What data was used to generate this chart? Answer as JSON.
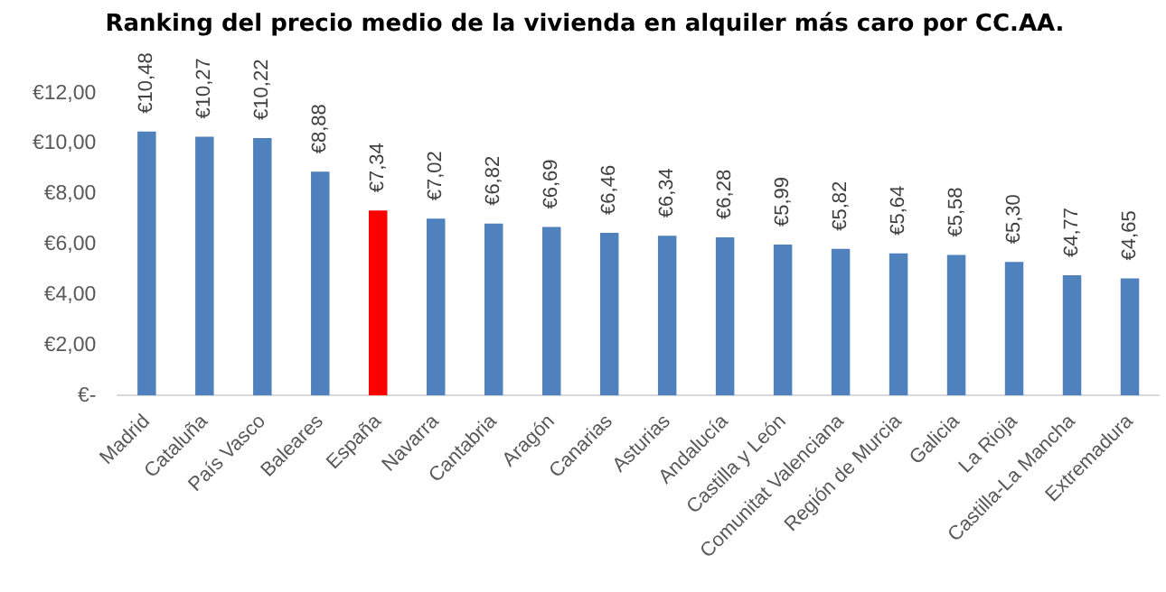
{
  "chart_data": {
    "type": "bar",
    "title": "Ranking del precio medio de la vivienda en alquiler más caro por CC.AA.",
    "categories": [
      "Madrid",
      "Cataluña",
      "País Vasco",
      "Baleares",
      "España",
      "Navarra",
      "Cantabria",
      "Aragón",
      "Canarias",
      "Asturias",
      "Andalucía",
      "Castilla y León",
      "Comunitat Valenciana",
      "Región de Murcia",
      "Galicia",
      "La Rioja",
      "Castilla-La Mancha",
      "Extremadura"
    ],
    "values": [
      10.48,
      10.27,
      10.22,
      8.88,
      7.34,
      7.02,
      6.82,
      6.69,
      6.46,
      6.34,
      6.28,
      5.99,
      5.82,
      5.64,
      5.58,
      5.3,
      4.77,
      4.65
    ],
    "colors": [
      "#4f81bd",
      "#4f81bd",
      "#4f81bd",
      "#4f81bd",
      "#ff0000",
      "#4f81bd",
      "#4f81bd",
      "#4f81bd",
      "#4f81bd",
      "#4f81bd",
      "#4f81bd",
      "#4f81bd",
      "#4f81bd",
      "#4f81bd",
      "#4f81bd",
      "#4f81bd",
      "#4f81bd",
      "#4f81bd"
    ],
    "value_labels": [
      "€10,48",
      "€10,27",
      "€10,22",
      "€8,88",
      "€7,34",
      "€7,02",
      "€6,82",
      "€6,69",
      "€6,46",
      "€6,34",
      "€6,28",
      "€5,99",
      "€5,82",
      "€5,64",
      "€5,58",
      "€5,30",
      "€4,77",
      "€4,65"
    ],
    "ylim": [
      0,
      12
    ],
    "yticks": [
      {
        "value": 0,
        "label": "€-"
      },
      {
        "value": 2,
        "label": "€2,00"
      },
      {
        "value": 4,
        "label": "€4,00"
      },
      {
        "value": 6,
        "label": "€6,00"
      },
      {
        "value": 8,
        "label": "€8,00"
      },
      {
        "value": 10,
        "label": "€10,00"
      },
      {
        "value": 12,
        "label": "€12,00"
      }
    ]
  }
}
